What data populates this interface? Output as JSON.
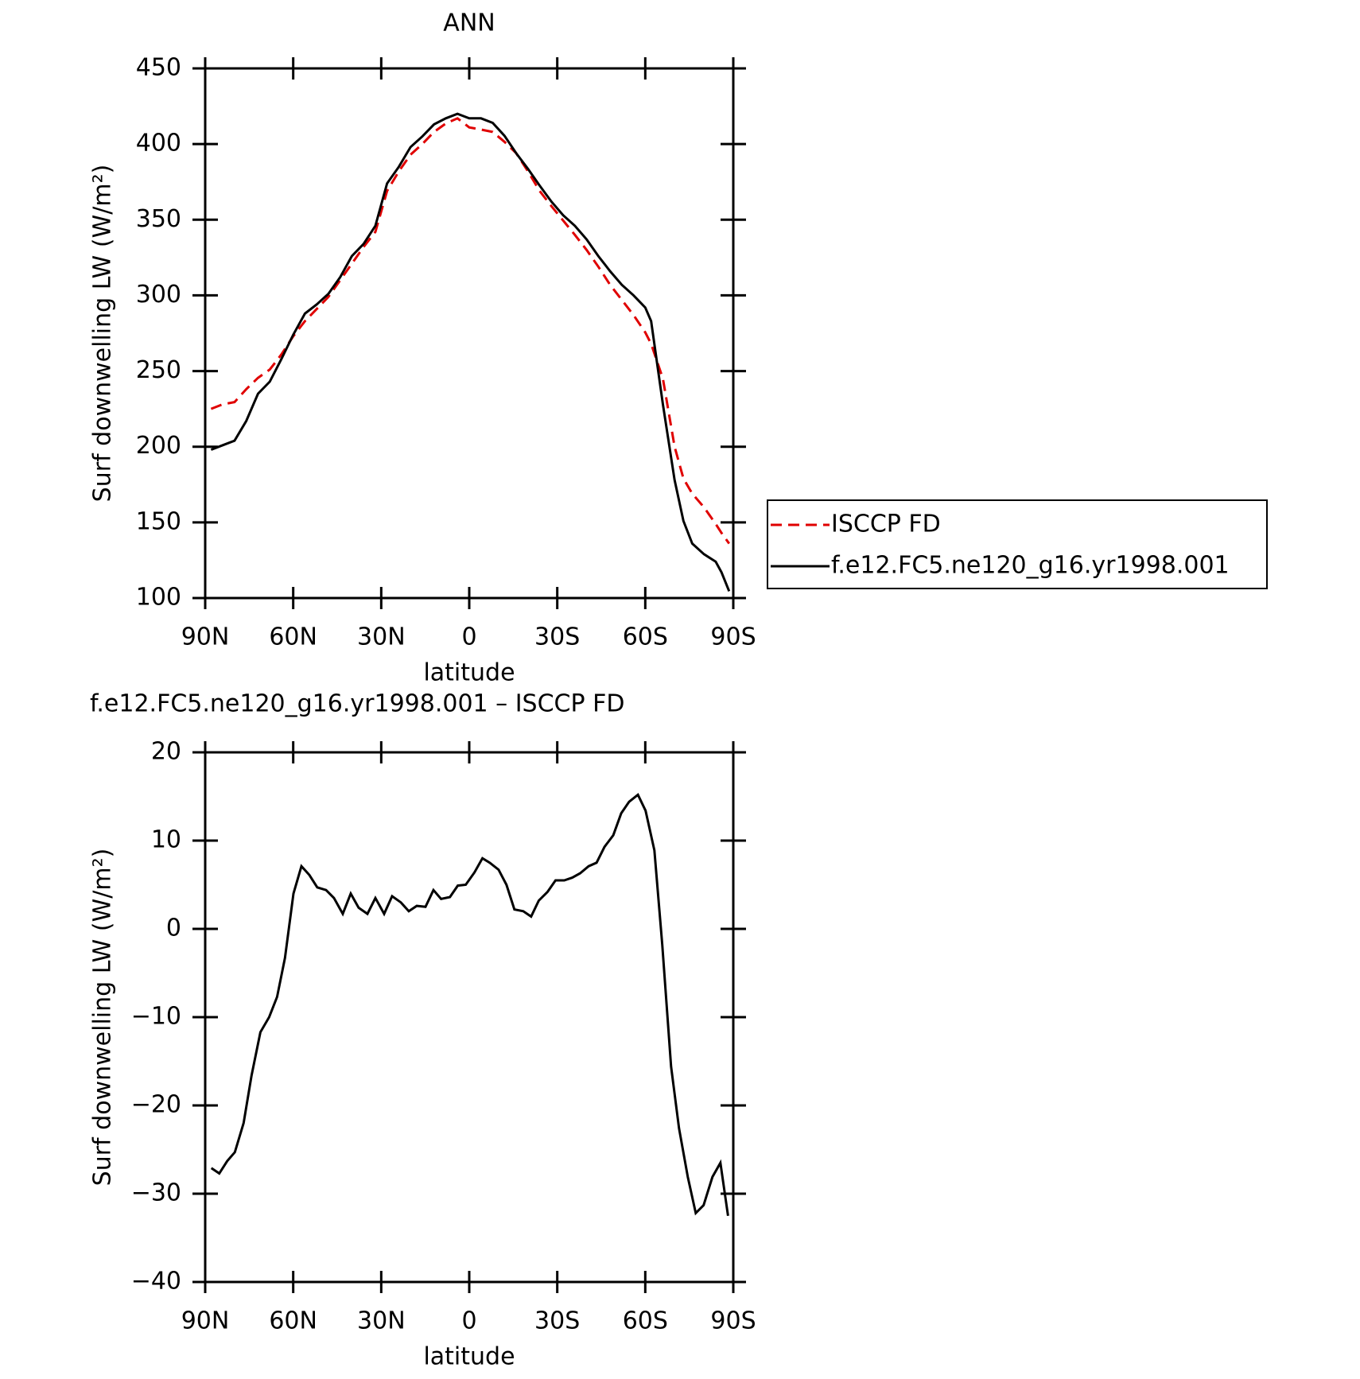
{
  "chart_data": [
    {
      "type": "line",
      "title": "ANN",
      "x_label": "latitude",
      "y_label": "Surf downwelling LW (W/m²)",
      "x": [
        88,
        84,
        80,
        76,
        72,
        68,
        64,
        60,
        56,
        52,
        48,
        44,
        40,
        36,
        32,
        28,
        24,
        20,
        16,
        12,
        8,
        4,
        0,
        -4,
        -8,
        -12,
        -16,
        -20,
        -24,
        -28,
        -32,
        -36,
        -40,
        -44,
        -48,
        -52,
        -56,
        -60,
        -62,
        -66,
        -70,
        -73,
        -76,
        -80,
        -84,
        -86,
        -88.6
      ],
      "series": [
        {
          "name": "ISCCP FD",
          "color": "#e00000",
          "dash": true,
          "values": [
            225,
            228,
            229.5,
            238,
            245.5,
            251,
            261,
            273,
            283,
            291,
            299,
            310,
            321,
            332,
            342,
            369,
            382,
            393,
            400,
            408,
            413.6,
            417,
            411,
            409.6,
            408,
            401.5,
            394,
            382,
            369,
            359,
            349.5,
            340,
            330,
            319,
            307,
            297,
            287,
            275.6,
            268,
            245,
            200,
            179,
            169,
            160,
            149,
            143,
            136
          ]
        },
        {
          "name": "f.e12.FC5.ne120_g16.yr1998.001",
          "color": "#000000",
          "dash": false,
          "values": [
            198,
            201,
            204,
            217,
            235,
            243,
            258,
            274,
            288,
            294,
            301,
            312,
            326,
            334,
            346,
            374,
            385,
            398,
            405,
            413,
            417,
            420,
            417,
            417,
            414,
            405.5,
            394,
            383.6,
            372.6,
            362,
            353,
            346,
            337,
            326,
            316,
            307,
            300,
            292,
            283,
            228,
            178,
            151,
            136,
            129,
            124,
            117,
            104.5
          ]
        }
      ],
      "xlim": [
        90,
        -90
      ],
      "xticks": [
        {
          "value": 90,
          "label": "90N"
        },
        {
          "value": 60,
          "label": "60N"
        },
        {
          "value": 30,
          "label": "30N"
        },
        0,
        {
          "value": -30,
          "label": "30S"
        },
        {
          "value": -60,
          "label": "60S"
        },
        {
          "value": -90,
          "label": "90S"
        }
      ],
      "ylim": [
        100,
        450
      ],
      "yticks": [
        100,
        150,
        200,
        250,
        300,
        350,
        400,
        450
      ],
      "legend": "right"
    },
    {
      "type": "line",
      "title": "f.e12.FC5.ne120_g16.yr1998.001 – ISCCP FD",
      "x_label": "latitude",
      "y_label": "Surf downwelling LW (W/m²)",
      "x": [
        87.9,
        85.2,
        82.5,
        79.9,
        76.9,
        74.2,
        71.2,
        68.2,
        65.5,
        62.8,
        59.9,
        57.2,
        54.5,
        51.8,
        48.8,
        46.1,
        43.1,
        40.4,
        37.7,
        34.7,
        32,
        29,
        26.3,
        23.3,
        20.6,
        17.9,
        14.9,
        12.2,
        9.6,
        6.6,
        3.9,
        1.2,
        -1.8,
        -4.5,
        -7,
        -10,
        -12.7,
        -15.4,
        -18.4,
        -21.1,
        -23.7,
        -26.7,
        -29.4,
        -32.4,
        -35.1,
        -37.8,
        -40.7,
        -43.4,
        -46.1,
        -49.1,
        -51.8,
        -54.5,
        -57.5,
        -60.1,
        -63.1,
        -65.8,
        -68.8,
        -71.5,
        -74.5,
        -77.2,
        -79.9,
        -82.9,
        -85.6,
        -88.2
      ],
      "color": "#000000",
      "values": [
        -27.1,
        -27.7,
        -26.3,
        -25.3,
        -22,
        -16.6,
        -11.7,
        -10,
        -7.7,
        -3.3,
        4,
        7.1,
        6.1,
        4.7,
        4.4,
        3.5,
        1.7,
        4,
        2.4,
        1.7,
        3.5,
        1.7,
        3.7,
        3,
        2,
        2.6,
        2.5,
        4.4,
        3.4,
        3.6,
        4.9,
        5,
        6.4,
        8,
        7.5,
        6.7,
        5,
        2.2,
        2,
        1.4,
        3.2,
        4.2,
        5.5,
        5.5,
        5.8,
        6.3,
        7.1,
        7.5,
        9.3,
        10.6,
        13.1,
        14.4,
        15.2,
        13.4,
        8.9,
        -1.8,
        -15.6,
        -22.6,
        -28.1,
        -32.2,
        -31.3,
        -28.1,
        -26.5,
        -32.5
      ],
      "xlim": [
        90,
        -90
      ],
      "xticks": [
        {
          "value": 90,
          "label": "90N"
        },
        {
          "value": 60,
          "label": "60N"
        },
        {
          "value": 30,
          "label": "30N"
        },
        0,
        {
          "value": -30,
          "label": "30S"
        },
        {
          "value": -60,
          "label": "60S"
        },
        {
          "value": -90,
          "label": "90S"
        }
      ],
      "ylim": [
        -40,
        20
      ],
      "yticks": [
        {
          "value": -40,
          "label": "−40"
        },
        {
          "value": -30,
          "label": "−30"
        },
        {
          "value": -20,
          "label": "−20"
        },
        {
          "value": -10,
          "label": "−10"
        },
        0,
        10,
        20
      ]
    }
  ]
}
